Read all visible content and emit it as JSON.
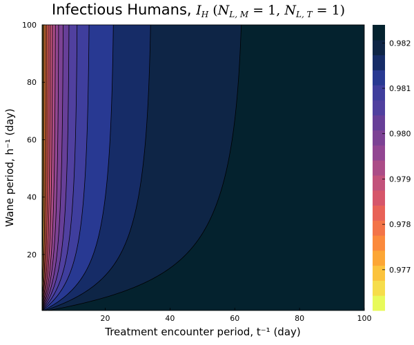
{
  "chart_data": {
    "type": "contour",
    "title": {
      "text": "Infectious Humans, ",
      "symbol": "I",
      "symbol_sub": "H",
      "cond_open": " (",
      "n_symbol_1": "N",
      "n_sub_1": "L, M",
      "eq_1": " = 1, ",
      "n_symbol_2": "N",
      "n_sub_2": "L, T",
      "eq_2": " = 1)"
    },
    "xlabel": "Treatment encounter period, t⁻¹ (day)",
    "ylabel": "Wane period, h⁻¹ (day)",
    "xlim": [
      0.5,
      100
    ],
    "ylim": [
      0.5,
      100
    ],
    "xticks": [
      20,
      40,
      60,
      80,
      100
    ],
    "yticks": [
      20,
      40,
      60,
      80,
      100
    ],
    "colorbar": {
      "min": 0.9761,
      "max": 0.9824,
      "ticks": [
        0.977,
        0.978,
        0.979,
        0.98,
        0.981,
        0.982
      ],
      "tick_labels": [
        "0.977",
        "0.978",
        "0.979",
        "0.980",
        "0.981",
        "0.982"
      ],
      "colormap": "thermal"
    },
    "contour_x_at_top": [
      0.6,
      0.8,
      1.1,
      1.5,
      1.9,
      2.4,
      3.0,
      3.7,
      4.6,
      5.6,
      7.0,
      8.8,
      11.3,
      15.0,
      22.5,
      34.0,
      62.0
    ],
    "band_colors": [
      "#e8fa5b",
      "#f6dd4b",
      "#fbc33d",
      "#fca635",
      "#fb8a3c",
      "#f37448",
      "#e86257",
      "#d6566a",
      "#c2527b",
      "#ab4c87",
      "#924692",
      "#7c4294",
      "#673f98",
      "#50409f",
      "#3f3e9d",
      "#283992",
      "#162c67",
      "#0e2546",
      "#04222e"
    ],
    "grid": false,
    "legend": "colorbar-right"
  }
}
